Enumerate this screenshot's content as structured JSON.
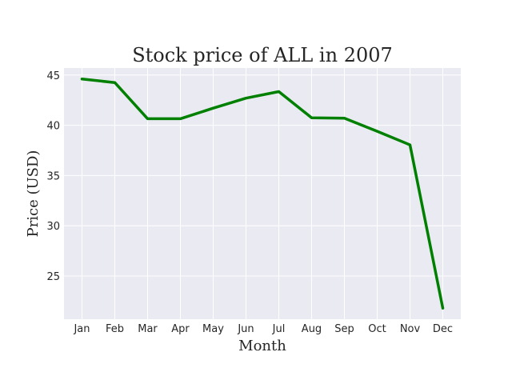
{
  "chart_data": {
    "type": "line",
    "title": "Stock price of ALL in 2007",
    "xlabel": "Month",
    "ylabel": "Price (USD)",
    "categories": [
      "Jan",
      "Feb",
      "Mar",
      "Apr",
      "May",
      "Jun",
      "Jul",
      "Aug",
      "Sep",
      "Oct",
      "Nov",
      "Dec"
    ],
    "series": [
      {
        "values": [
          44.6,
          44.25,
          40.65,
          40.65,
          41.7,
          42.7,
          43.35,
          40.75,
          40.7,
          39.4,
          38.05,
          21.8
        ],
        "color": "#008000"
      }
    ],
    "yticks": [
      25,
      30,
      35,
      40,
      45
    ],
    "ylim": [
      20.7,
      45.7
    ],
    "grid": true,
    "background": "#eaeaf2",
    "grid_color": "#ffffff"
  }
}
